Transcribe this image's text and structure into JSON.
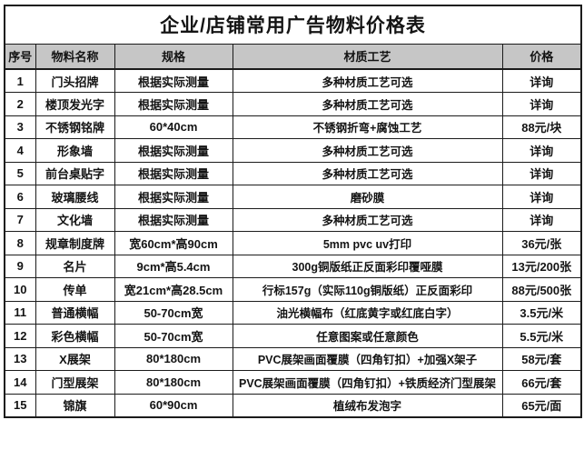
{
  "table": {
    "title": "企业/店铺常用广告物料价格表",
    "columns": [
      {
        "key": "no",
        "label": "序号"
      },
      {
        "key": "name",
        "label": "物料名称"
      },
      {
        "key": "spec",
        "label": "规格"
      },
      {
        "key": "process",
        "label": "材质工艺"
      },
      {
        "key": "price",
        "label": "价格"
      }
    ],
    "rows": [
      {
        "no": "1",
        "name": "门头招牌",
        "spec": "根据实际测量",
        "process": "多种材质工艺可选",
        "price": "详询"
      },
      {
        "no": "2",
        "name": "楼顶发光字",
        "spec": "根据实际测量",
        "process": "多种材质工艺可选",
        "price": "详询"
      },
      {
        "no": "3",
        "name": "不锈钢铭牌",
        "spec": "60*40cm",
        "process": "不锈钢折弯+腐蚀工艺",
        "price": "88元/块"
      },
      {
        "no": "4",
        "name": "形象墙",
        "spec": "根据实际测量",
        "process": "多种材质工艺可选",
        "price": "详询"
      },
      {
        "no": "5",
        "name": "前台桌贴字",
        "spec": "根据实际测量",
        "process": "多种材质工艺可选",
        "price": "详询"
      },
      {
        "no": "6",
        "name": "玻璃腰线",
        "spec": "根据实际测量",
        "process": "磨砂膜",
        "price": "详询"
      },
      {
        "no": "7",
        "name": "文化墙",
        "spec": "根据实际测量",
        "process": "多种材质工艺可选",
        "price": "详询"
      },
      {
        "no": "8",
        "name": "规章制度牌",
        "spec": "宽60cm*高90cm",
        "process": "5mm pvc uv打印",
        "price": "36元/张"
      },
      {
        "no": "9",
        "name": "名片",
        "spec": "9cm*高5.4cm",
        "process": "300g铜版纸正反面彩印覆哑膜",
        "price": "13元/200张"
      },
      {
        "no": "10",
        "name": "传单",
        "spec": "宽21cm*高28.5cm",
        "process": "行标157g（实际110g铜版纸）正反面彩印",
        "price": "88元/500张"
      },
      {
        "no": "11",
        "name": "普通横幅",
        "spec": "50-70cm宽",
        "process": "油光横幅布（红底黄字或红底白字）",
        "price": "3.5元/米"
      },
      {
        "no": "12",
        "name": "彩色横幅",
        "spec": "50-70cm宽",
        "process": "任意图案或任意颜色",
        "price": "5.5元/米"
      },
      {
        "no": "13",
        "name": "X展架",
        "spec": "80*180cm",
        "process": "PVC展架画面覆膜（四角钉扣）+加强X架子",
        "price": "58元/套"
      },
      {
        "no": "14",
        "name": "门型展架",
        "spec": "80*180cm",
        "process": "PVC展架画面覆膜（四角钉扣）+铁质经济门型展架",
        "price": "66元/套"
      },
      {
        "no": "15",
        "name": "锦旗",
        "spec": "60*90cm",
        "process": "植绒布发泡字",
        "price": "65元/面"
      }
    ],
    "colors": {
      "header_fill": "#c6c6c6",
      "border": "#1b1b1b",
      "text": "#141414",
      "background": "#ffffff"
    }
  }
}
